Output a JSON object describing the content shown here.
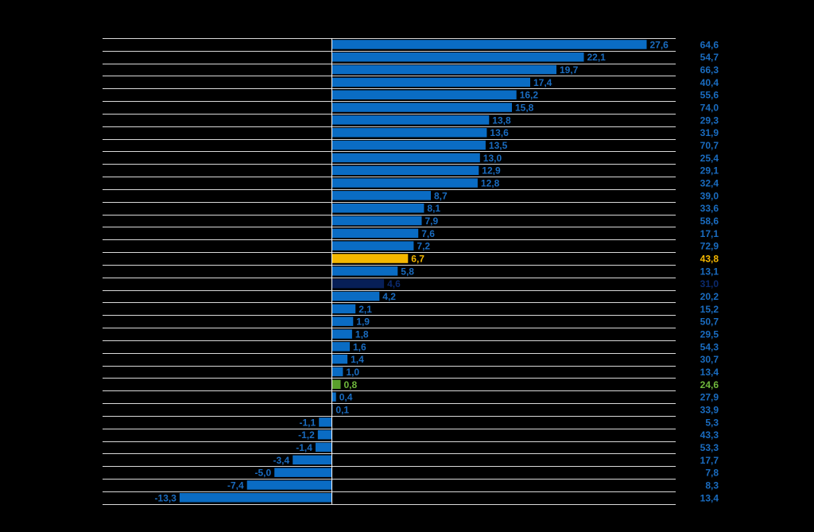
{
  "chart_data": {
    "type": "bar",
    "orientation": "horizontal",
    "title": "",
    "xlabel": "",
    "ylabel": "",
    "xlim": [
      -13.3,
      27.6
    ],
    "grid": true,
    "legend": "none",
    "colors": {
      "default": "#0a6cc4",
      "highlight": "#f5b800",
      "dark": "#071f57",
      "green": "#5aa02c",
      "default_label": "#1a6cc0",
      "highlight_label": "#f5b800",
      "dark_label": "#0b2a6e",
      "green_label": "#6fb83c",
      "gridline": "#ffffff"
    },
    "bars": [
      {
        "value": 27.6,
        "label": "27,6",
        "side": "64,6",
        "style": "default"
      },
      {
        "value": 22.1,
        "label": "22,1",
        "side": "54,7",
        "style": "default"
      },
      {
        "value": 19.7,
        "label": "19,7",
        "side": "66,3",
        "style": "default"
      },
      {
        "value": 17.4,
        "label": "17,4",
        "side": "40,4",
        "style": "default"
      },
      {
        "value": 16.2,
        "label": "16,2",
        "side": "55,6",
        "style": "default"
      },
      {
        "value": 15.8,
        "label": "15,8",
        "side": "74,0",
        "style": "default"
      },
      {
        "value": 13.8,
        "label": "13,8",
        "side": "29,3",
        "style": "default"
      },
      {
        "value": 13.6,
        "label": "13,6",
        "side": "31,9",
        "style": "default"
      },
      {
        "value": 13.5,
        "label": "13,5",
        "side": "70,7",
        "style": "default"
      },
      {
        "value": 13.0,
        "label": "13,0",
        "side": "25,4",
        "style": "default"
      },
      {
        "value": 12.9,
        "label": "12,9",
        "side": "29,1",
        "style": "default"
      },
      {
        "value": 12.8,
        "label": "12,8",
        "side": "32,4",
        "style": "default"
      },
      {
        "value": 8.7,
        "label": "8,7",
        "side": "39,0",
        "style": "default"
      },
      {
        "value": 8.1,
        "label": "8,1",
        "side": "33,6",
        "style": "default"
      },
      {
        "value": 7.9,
        "label": "7,9",
        "side": "58,6",
        "style": "default"
      },
      {
        "value": 7.6,
        "label": "7,6",
        "side": "17,1",
        "style": "default"
      },
      {
        "value": 7.2,
        "label": "7,2",
        "side": "72,9",
        "style": "default"
      },
      {
        "value": 6.7,
        "label": "6,7",
        "side": "43,8",
        "style": "highlight"
      },
      {
        "value": 5.8,
        "label": "5,8",
        "side": "13,1",
        "style": "default"
      },
      {
        "value": 4.6,
        "label": "4,6",
        "side": "31,0",
        "style": "dark"
      },
      {
        "value": 4.2,
        "label": "4,2",
        "side": "20,2",
        "style": "default"
      },
      {
        "value": 2.1,
        "label": "2,1",
        "side": "15,2",
        "style": "default"
      },
      {
        "value": 1.9,
        "label": "1,9",
        "side": "50,7",
        "style": "default"
      },
      {
        "value": 1.8,
        "label": "1,8",
        "side": "29,5",
        "style": "default"
      },
      {
        "value": 1.6,
        "label": "1,6",
        "side": "54,3",
        "style": "default"
      },
      {
        "value": 1.4,
        "label": "1,4",
        "side": "30,7",
        "style": "default"
      },
      {
        "value": 1.0,
        "label": "1,0",
        "side": "13,4",
        "style": "default"
      },
      {
        "value": 0.8,
        "label": "0,8",
        "side": "24,6",
        "style": "green"
      },
      {
        "value": 0.4,
        "label": "0,4",
        "side": "27,9",
        "style": "default"
      },
      {
        "value": 0.1,
        "label": "0,1",
        "side": "33,9",
        "style": "default"
      },
      {
        "value": -1.1,
        "label": "-1,1",
        "side": "5,3",
        "style": "default"
      },
      {
        "value": -1.2,
        "label": "-1,2",
        "side": "43,3",
        "style": "default"
      },
      {
        "value": -1.4,
        "label": "-1,4",
        "side": "53,3",
        "style": "default"
      },
      {
        "value": -3.4,
        "label": "-3,4",
        "side": "17,7",
        "style": "default"
      },
      {
        "value": -5.0,
        "label": "-5,0",
        "side": "7,8",
        "style": "default"
      },
      {
        "value": -7.4,
        "label": "-7,4",
        "side": "8,3",
        "style": "default"
      },
      {
        "value": -13.3,
        "label": "-13,3",
        "side": "13,4",
        "style": "default"
      }
    ]
  }
}
